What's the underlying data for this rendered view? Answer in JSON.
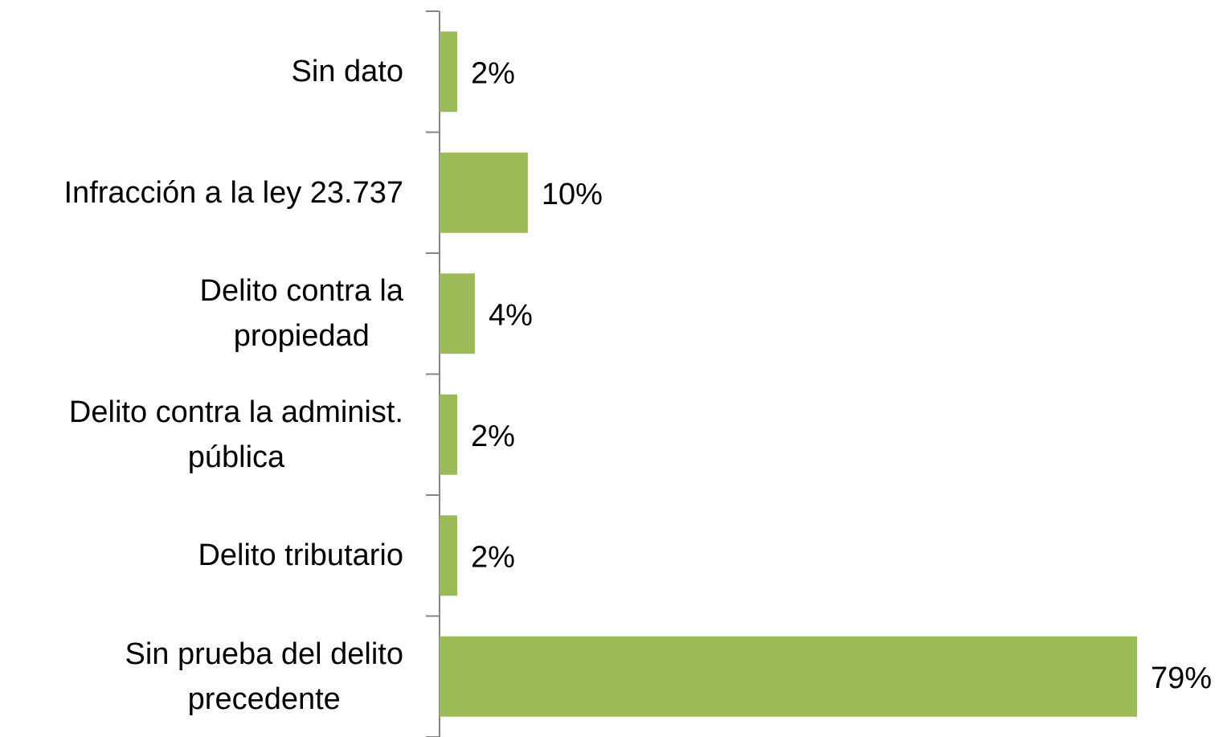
{
  "chart_data": {
    "type": "barh",
    "categories": [
      "Sin dato",
      "Infracción a la ley 23.737",
      "Delito contra la\npropiedad",
      "Delito contra la administ.\npública",
      "Delito tributario",
      "Sin prueba del delito\nprecedente"
    ],
    "values": [
      2,
      10,
      4,
      2,
      2,
      79
    ],
    "value_labels": [
      "2%",
      "10%",
      "4%",
      "2%",
      "2%",
      "79%"
    ],
    "color": "#9bbb59"
  }
}
